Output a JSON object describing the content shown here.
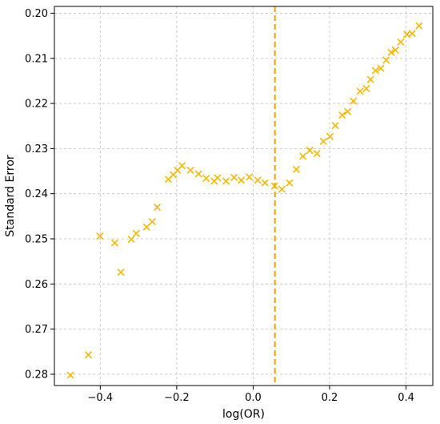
{
  "chart_data": {
    "type": "scatter",
    "title": "",
    "xlabel": "log(OR)",
    "ylabel": "Standard Error",
    "xlim": [
      -0.52,
      0.47
    ],
    "ylim": [
      0.2825,
      0.1985
    ],
    "y_inverted": true,
    "grid": true,
    "x_ticks": [
      -0.4,
      -0.2,
      0.0,
      0.2,
      0.4
    ],
    "x_tick_labels": [
      "−0.4",
      "−0.2",
      "0.0",
      "0.2",
      "0.4"
    ],
    "y_ticks": [
      0.2,
      0.21,
      0.22,
      0.23,
      0.24,
      0.25,
      0.26,
      0.27,
      0.28
    ],
    "y_tick_labels": [
      "0.20",
      "0.21",
      "0.22",
      "0.23",
      "0.24",
      "0.25",
      "0.26",
      "0.27",
      "0.28"
    ],
    "marker": "x",
    "marker_color": "#f5b800",
    "reference_line": {
      "orientation": "vertical",
      "x": 0.057,
      "color": "#f5a000",
      "style": "dashed"
    },
    "points": [
      {
        "x": -0.478,
        "y": 0.2802
      },
      {
        "x": -0.431,
        "y": 0.2757
      },
      {
        "x": -0.401,
        "y": 0.2494
      },
      {
        "x": -0.362,
        "y": 0.2509
      },
      {
        "x": -0.346,
        "y": 0.2574
      },
      {
        "x": -0.319,
        "y": 0.2501
      },
      {
        "x": -0.306,
        "y": 0.2488
      },
      {
        "x": -0.279,
        "y": 0.2474
      },
      {
        "x": -0.264,
        "y": 0.2462
      },
      {
        "x": -0.251,
        "y": 0.243
      },
      {
        "x": -0.222,
        "y": 0.2368
      },
      {
        "x": -0.209,
        "y": 0.2358
      },
      {
        "x": -0.198,
        "y": 0.2348
      },
      {
        "x": -0.186,
        "y": 0.2338
      },
      {
        "x": -0.164,
        "y": 0.2348
      },
      {
        "x": -0.143,
        "y": 0.2356
      },
      {
        "x": -0.123,
        "y": 0.2366
      },
      {
        "x": -0.102,
        "y": 0.2372
      },
      {
        "x": -0.093,
        "y": 0.2365
      },
      {
        "x": -0.071,
        "y": 0.2372
      },
      {
        "x": -0.05,
        "y": 0.2364
      },
      {
        "x": -0.031,
        "y": 0.237
      },
      {
        "x": -0.01,
        "y": 0.2363
      },
      {
        "x": 0.012,
        "y": 0.237
      },
      {
        "x": 0.031,
        "y": 0.2376
      },
      {
        "x": 0.056,
        "y": 0.2383
      },
      {
        "x": 0.075,
        "y": 0.239
      },
      {
        "x": 0.095,
        "y": 0.2376
      },
      {
        "x": 0.113,
        "y": 0.2346
      },
      {
        "x": 0.13,
        "y": 0.2317
      },
      {
        "x": 0.148,
        "y": 0.2304
      },
      {
        "x": 0.167,
        "y": 0.2311
      },
      {
        "x": 0.184,
        "y": 0.2284
      },
      {
        "x": 0.201,
        "y": 0.2273
      },
      {
        "x": 0.215,
        "y": 0.2249
      },
      {
        "x": 0.233,
        "y": 0.2226
      },
      {
        "x": 0.247,
        "y": 0.2218
      },
      {
        "x": 0.262,
        "y": 0.2195
      },
      {
        "x": 0.28,
        "y": 0.2173
      },
      {
        "x": 0.296,
        "y": 0.2167
      },
      {
        "x": 0.307,
        "y": 0.2147
      },
      {
        "x": 0.32,
        "y": 0.2127
      },
      {
        "x": 0.334,
        "y": 0.2122
      },
      {
        "x": 0.348,
        "y": 0.2104
      },
      {
        "x": 0.361,
        "y": 0.2087
      },
      {
        "x": 0.372,
        "y": 0.2082
      },
      {
        "x": 0.386,
        "y": 0.2064
      },
      {
        "x": 0.402,
        "y": 0.2047
      },
      {
        "x": 0.416,
        "y": 0.2045
      },
      {
        "x": 0.434,
        "y": 0.2028
      }
    ]
  }
}
